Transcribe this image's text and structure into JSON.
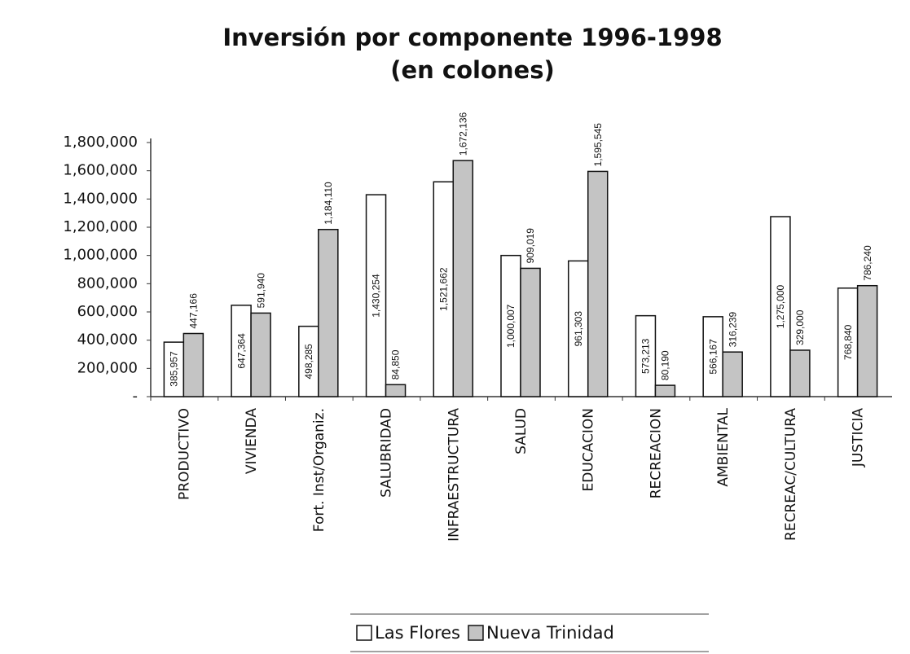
{
  "chart_data": {
    "type": "bar",
    "title": "Inversión por componente 1996-1998",
    "subtitle": "(en colones)",
    "categories": [
      "PRODUCTIVO",
      "VIVIENDA",
      "Fort. Inst/Organiz.",
      "SALUBRIDAD",
      "INFRAESTRUCTURA",
      "SALUD",
      "EDUCACION",
      "RECREACION",
      "AMBIENTAL",
      "RECREAC/CULTURA",
      "JUSTICIA"
    ],
    "series": [
      {
        "name": "Las Flores",
        "color": "#ffffff",
        "values": [
          385957,
          647364,
          498285,
          1430254,
          1521662,
          1000007,
          961303,
          573213,
          566167,
          1275000,
          768840
        ],
        "value_labels": [
          "385,957",
          "647,364",
          "498,285",
          "1,430,254",
          "1,521,662",
          "1,000,007",
          "961,303",
          "573,213",
          "566,167",
          "1,275,000",
          "768,840"
        ]
      },
      {
        "name": "Nueva Trinidad",
        "color": "#c4c4c4",
        "values": [
          447166,
          591940,
          1184110,
          84850,
          1672136,
          909019,
          1595545,
          80190,
          316239,
          329000,
          786240
        ],
        "value_labels": [
          "447,166",
          "591,940",
          "1,184,110",
          "84,850",
          "1,672,136",
          "909,019",
          "1,595,545",
          "80,190",
          "316,239",
          "329,000",
          "786,240"
        ]
      }
    ],
    "ylim": [
      0,
      1800000
    ],
    "yticks": [
      {
        "value": 0,
        "label": "-"
      },
      {
        "value": 200000,
        "label": "200,000"
      },
      {
        "value": 400000,
        "label": "400,000"
      },
      {
        "value": 600000,
        "label": "600,000"
      },
      {
        "value": 800000,
        "label": "800,000"
      },
      {
        "value": 1000000,
        "label": "1,000,000"
      },
      {
        "value": 1200000,
        "label": "1,200,000"
      },
      {
        "value": 1400000,
        "label": "1,400,000"
      },
      {
        "value": 1600000,
        "label": "1,600,000"
      },
      {
        "value": 1800000,
        "label": "1,800,000"
      }
    ],
    "grid": false,
    "legend": "bottom"
  }
}
